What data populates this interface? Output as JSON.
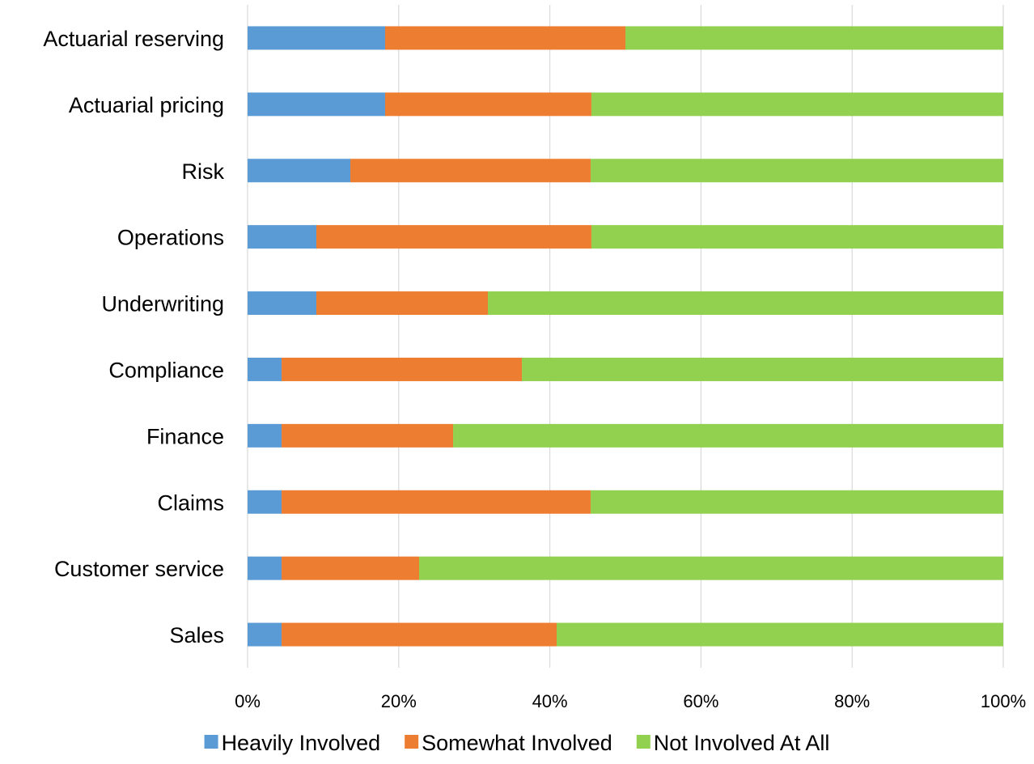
{
  "chart_data": {
    "type": "bar",
    "orientation": "horizontal",
    "stacked": "percent",
    "title": "",
    "xlabel": "",
    "ylabel": "",
    "categories": [
      "Actuarial reserving",
      "Actuarial pricing",
      "Risk",
      "Operations",
      "Underwriting",
      "Compliance",
      "Finance",
      "Claims",
      "Customer service",
      "Sales"
    ],
    "series": [
      {
        "name": "Heavily Involved",
        "color": "#5b9bd5",
        "values": [
          18.2,
          18.2,
          13.6,
          9.1,
          9.1,
          4.5,
          4.5,
          4.5,
          4.5,
          4.5
        ]
      },
      {
        "name": "Somewhat Involved",
        "color": "#ed7d31",
        "values": [
          31.8,
          27.3,
          31.8,
          36.4,
          22.7,
          31.8,
          22.7,
          40.9,
          18.2,
          36.4
        ]
      },
      {
        "name": "Not Involved At All",
        "color": "#92d050",
        "values": [
          50.0,
          54.5,
          54.6,
          54.5,
          68.2,
          63.7,
          72.8,
          54.6,
          77.3,
          59.1
        ]
      }
    ],
    "xlim": [
      0,
      100
    ],
    "xticks": [
      "0%",
      "20%",
      "40%",
      "60%",
      "80%",
      "100%"
    ],
    "grid": "vertical",
    "legend_position": "bottom"
  }
}
